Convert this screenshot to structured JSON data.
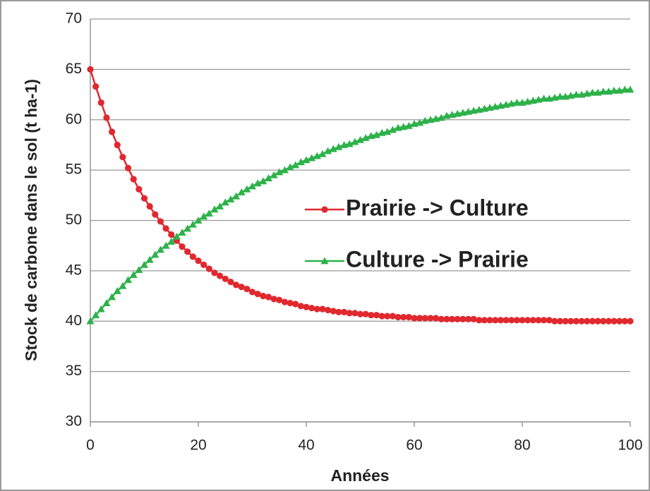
{
  "chart_data": {
    "type": "line",
    "xlabel": "Années",
    "ylabel": "Stock de carbone dans le sol (t ha-1)",
    "x": [
      0,
      1,
      2,
      3,
      4,
      5,
      6,
      7,
      8,
      9,
      10,
      11,
      12,
      13,
      14,
      15,
      16,
      17,
      18,
      19,
      20,
      21,
      22,
      23,
      24,
      25,
      26,
      27,
      28,
      29,
      30,
      31,
      32,
      33,
      34,
      35,
      36,
      37,
      38,
      39,
      40,
      41,
      42,
      43,
      44,
      45,
      46,
      47,
      48,
      49,
      50,
      51,
      52,
      53,
      54,
      55,
      56,
      57,
      58,
      59,
      60,
      61,
      62,
      63,
      64,
      65,
      66,
      67,
      68,
      69,
      70,
      71,
      72,
      73,
      74,
      75,
      76,
      77,
      78,
      79,
      80,
      81,
      82,
      83,
      84,
      85,
      86,
      87,
      88,
      89,
      90,
      91,
      92,
      93,
      94,
      95,
      96,
      97,
      98,
      99,
      100
    ],
    "series": [
      {
        "name": "Prairie -> Culture",
        "color": "#e0282e",
        "marker": "circle",
        "values": [
          65.0,
          63.3,
          61.7,
          60.2,
          58.8,
          57.5,
          56.3,
          55.2,
          54.1,
          53.1,
          52.2,
          51.4,
          50.6,
          49.9,
          49.2,
          48.6,
          48.0,
          47.4,
          46.9,
          46.4,
          46.0,
          45.6,
          45.2,
          44.8,
          44.5,
          44.2,
          43.9,
          43.6,
          43.4,
          43.2,
          42.9,
          42.7,
          42.5,
          42.4,
          42.2,
          42.1,
          41.9,
          41.8,
          41.7,
          41.5,
          41.4,
          41.3,
          41.2,
          41.2,
          41.1,
          41.0,
          40.9,
          40.9,
          40.8,
          40.8,
          40.7,
          40.7,
          40.6,
          40.6,
          40.5,
          40.5,
          40.5,
          40.4,
          40.4,
          40.4,
          40.3,
          40.3,
          40.3,
          40.3,
          40.3,
          40.2,
          40.2,
          40.2,
          40.2,
          40.2,
          40.2,
          40.2,
          40.1,
          40.1,
          40.1,
          40.1,
          40.1,
          40.1,
          40.1,
          40.1,
          40.1,
          40.1,
          40.1,
          40.1,
          40.1,
          40.1,
          40.0,
          40.0,
          40.0,
          40.0,
          40.0,
          40.0,
          40.0,
          40.0,
          40.0,
          40.0,
          40.0,
          40.0,
          40.0,
          40.0,
          40.0
        ]
      },
      {
        "name": "Culture -> Prairie",
        "color": "#2db24a",
        "marker": "triangle",
        "values": [
          40.0,
          40.6,
          41.2,
          41.8,
          42.4,
          43.0,
          43.5,
          44.1,
          44.6,
          45.1,
          45.6,
          46.1,
          46.6,
          47.1,
          47.5,
          47.9,
          48.4,
          48.8,
          49.2,
          49.6,
          50.0,
          50.4,
          50.7,
          51.1,
          51.4,
          51.8,
          52.1,
          52.4,
          52.8,
          53.1,
          53.4,
          53.7,
          53.9,
          54.2,
          54.5,
          54.8,
          55.0,
          55.3,
          55.5,
          55.8,
          56.0,
          56.2,
          56.4,
          56.6,
          56.9,
          57.1,
          57.3,
          57.5,
          57.6,
          57.8,
          58.0,
          58.2,
          58.4,
          58.5,
          58.7,
          58.8,
          59.0,
          59.2,
          59.3,
          59.4,
          59.6,
          59.7,
          59.9,
          60.0,
          60.1,
          60.2,
          60.4,
          60.5,
          60.6,
          60.7,
          60.8,
          60.9,
          61.0,
          61.1,
          61.2,
          61.3,
          61.4,
          61.5,
          61.6,
          61.7,
          61.7,
          61.8,
          61.9,
          62.0,
          62.1,
          62.1,
          62.2,
          62.3,
          62.3,
          62.4,
          62.5,
          62.5,
          62.6,
          62.7,
          62.7,
          62.8,
          62.8,
          62.9,
          62.9,
          63.0,
          63.0
        ]
      }
    ],
    "xlim": [
      0,
      100
    ],
    "xticks": [
      0,
      20,
      40,
      60,
      80,
      100
    ],
    "ylim": [
      30,
      70
    ],
    "yticks": [
      30,
      35,
      40,
      45,
      50,
      55,
      60,
      65,
      70
    ],
    "grid": true,
    "legend": "center"
  }
}
